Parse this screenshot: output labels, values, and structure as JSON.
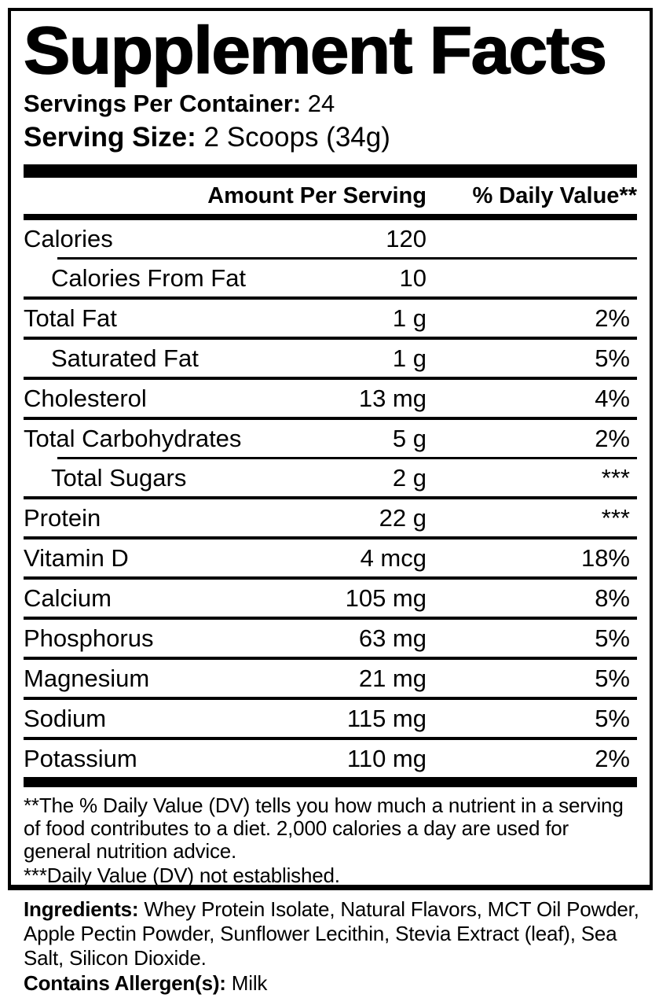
{
  "colors": {
    "text": "#000000",
    "background": "#ffffff"
  },
  "panel": {
    "title": "Supplement Facts",
    "servings_per_container_label": "Servings Per Container:",
    "servings_per_container_value": "24",
    "serving_size_label": "Serving Size:",
    "serving_size_value": "2 Scoops (34g)",
    "columns": {
      "amount_header": "Amount Per Serving",
      "daily_value_header": "% Daily Value**"
    },
    "rows": [
      {
        "name": "Calories",
        "amount": "120",
        "dv": "",
        "indent": false,
        "sep_below": "indent"
      },
      {
        "name": "Calories From Fat",
        "amount": "10",
        "dv": "",
        "indent": true,
        "sep_below": "full"
      },
      {
        "name": "Total Fat",
        "amount": "1 g",
        "dv": "2%",
        "indent": false,
        "sep_below": "full"
      },
      {
        "name": "Saturated Fat",
        "amount": "1 g",
        "dv": "5%",
        "indent": true,
        "sep_below": "full"
      },
      {
        "name": "Cholesterol",
        "amount": "13 mg",
        "dv": "4%",
        "indent": false,
        "sep_below": "full"
      },
      {
        "name": "Total Carbohydrates",
        "amount": "5 g",
        "dv": "2%",
        "indent": false,
        "sep_below": "indent"
      },
      {
        "name": "Total Sugars",
        "amount": "2 g",
        "dv": "***",
        "indent": true,
        "sep_below": "full"
      },
      {
        "name": "Protein",
        "amount": "22 g",
        "dv": "***",
        "indent": false,
        "sep_below": "full"
      },
      {
        "name": "Vitamin D",
        "amount": "4 mcg",
        "dv": "18%",
        "indent": false,
        "sep_below": "full"
      },
      {
        "name": "Calcium",
        "amount": "105 mg",
        "dv": "8%",
        "indent": false,
        "sep_below": "full"
      },
      {
        "name": "Phosphorus",
        "amount": "63 mg",
        "dv": "5%",
        "indent": false,
        "sep_below": "full"
      },
      {
        "name": "Magnesium",
        "amount": "21 mg",
        "dv": "5%",
        "indent": false,
        "sep_below": "full"
      },
      {
        "name": "Sodium",
        "amount": "115 mg",
        "dv": "5%",
        "indent": false,
        "sep_below": "full"
      },
      {
        "name": "Potassium",
        "amount": "110 mg",
        "dv": "2%",
        "indent": false,
        "sep_below": "none"
      }
    ],
    "footnotes": {
      "daily_value_note": "**The % Daily Value (DV) tells you how much a nutrient in a serving of food contributes to a diet. 2,000 calories a day are used for general nutrition advice.",
      "not_established_note": "***Daily Value (DV) not established."
    }
  },
  "ingredients": {
    "label": "Ingredients:",
    "value": "Whey Protein Isolate, Natural Flavors, MCT Oil Powder, Apple Pectin Powder, Sunflower Lecithin, Stevia Extract (leaf), Sea Salt, Silicon Dioxide.",
    "allergen_label": "Contains Allergen(s):",
    "allergen_value": "Milk"
  }
}
